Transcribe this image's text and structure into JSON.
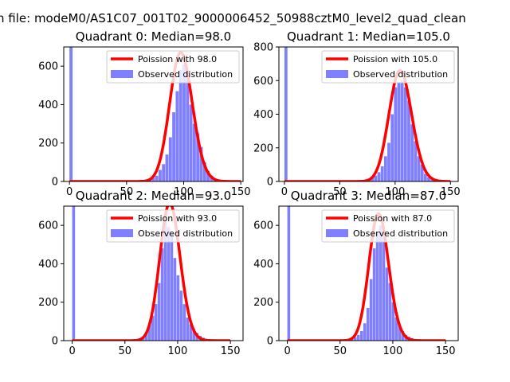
{
  "figure": {
    "suptitle": "n file: modeM0/AS1C07_001T02_9000006452_50988cztM0_level2_quad_clean"
  },
  "colors": {
    "poisson_line": "#ff0000",
    "observed_bars": "#7f7fff",
    "axes": "#000000",
    "background": "#ffffff"
  },
  "chart_data": [
    {
      "type": "bar",
      "title": "Quadrant 0: Median=98.0",
      "xlim": [
        -5,
        152
      ],
      "ylim": [
        0,
        700
      ],
      "xticks": [
        0,
        50,
        100,
        150
      ],
      "yticks": [
        0,
        200,
        400,
        600
      ],
      "legend": {
        "position": "top-right",
        "entries": [
          "Poission with 98.0",
          "Observed distribution"
        ]
      },
      "series": [
        {
          "name": "Poission with 98.0",
          "kind": "line",
          "mean": 98.0
        },
        {
          "name": "Observed distribution",
          "kind": "histogram",
          "bin_width": 3,
          "bins": [
            [
              0,
              700
            ],
            [
              55,
              2
            ],
            [
              60,
              3
            ],
            [
              63,
              5
            ],
            [
              66,
              8
            ],
            [
              69,
              12
            ],
            [
              72,
              20
            ],
            [
              75,
              30
            ],
            [
              78,
              60
            ],
            [
              81,
              90
            ],
            [
              84,
              140
            ],
            [
              87,
              230
            ],
            [
              90,
              360
            ],
            [
              93,
              470
            ],
            [
              96,
              580
            ],
            [
              99,
              610
            ],
            [
              102,
              560
            ],
            [
              105,
              400
            ],
            [
              108,
              300
            ],
            [
              111,
              250
            ],
            [
              114,
              180
            ],
            [
              117,
              100
            ],
            [
              120,
              55
            ],
            [
              123,
              30
            ],
            [
              126,
              15
            ],
            [
              129,
              8
            ],
            [
              132,
              4
            ]
          ]
        }
      ]
    },
    {
      "type": "bar",
      "title": "Quadrant 1: Median=105.0",
      "xlim": [
        -5,
        157
      ],
      "ylim": [
        0,
        800
      ],
      "xticks": [
        0,
        50,
        100,
        150
      ],
      "yticks": [
        0,
        200,
        400,
        600,
        800
      ],
      "legend": {
        "position": "top-right",
        "entries": [
          "Poission with 105.0",
          "Observed distribution"
        ]
      },
      "series": [
        {
          "name": "Poission with 105.0",
          "kind": "line",
          "mean": 105.0
        },
        {
          "name": "Observed distribution",
          "kind": "histogram",
          "bin_width": 3,
          "bins": [
            [
              0,
              800
            ],
            [
              60,
              2
            ],
            [
              66,
              4
            ],
            [
              69,
              6
            ],
            [
              72,
              10
            ],
            [
              75,
              15
            ],
            [
              78,
              20
            ],
            [
              81,
              35
            ],
            [
              84,
              55
            ],
            [
              87,
              90
            ],
            [
              90,
              150
            ],
            [
              93,
              230
            ],
            [
              96,
              400
            ],
            [
              99,
              560
            ],
            [
              102,
              590
            ],
            [
              105,
              600
            ],
            [
              108,
              560
            ],
            [
              111,
              480
            ],
            [
              114,
              340
            ],
            [
              117,
              240
            ],
            [
              120,
              150
            ],
            [
              123,
              100
            ],
            [
              126,
              45
            ],
            [
              129,
              25
            ],
            [
              132,
              12
            ],
            [
              135,
              5
            ],
            [
              138,
              2
            ]
          ]
        }
      ]
    },
    {
      "type": "bar",
      "title": "Quadrant 2: Median=93.0",
      "xlim": [
        -8,
        162
      ],
      "ylim": [
        0,
        700
      ],
      "xticks": [
        0,
        50,
        100,
        150
      ],
      "yticks": [
        0,
        200,
        400,
        600
      ],
      "legend": {
        "position": "top-right",
        "entries": [
          "Poission with 93.0",
          "Observed distribution"
        ]
      },
      "series": [
        {
          "name": "Poission with 93.0",
          "kind": "line",
          "mean": 93.0
        },
        {
          "name": "Observed distribution",
          "kind": "histogram",
          "bin_width": 3,
          "bins": [
            [
              0,
              700
            ],
            [
              54,
              4
            ],
            [
              60,
              8
            ],
            [
              63,
              10
            ],
            [
              66,
              20
            ],
            [
              69,
              45
            ],
            [
              72,
              85
            ],
            [
              75,
              130
            ],
            [
              78,
              190
            ],
            [
              81,
              300
            ],
            [
              84,
              480
            ],
            [
              87,
              650
            ],
            [
              90,
              590
            ],
            [
              93,
              560
            ],
            [
              96,
              430
            ],
            [
              99,
              340
            ],
            [
              102,
              260
            ],
            [
              105,
              190
            ],
            [
              108,
              120
            ],
            [
              111,
              85
            ],
            [
              114,
              60
            ],
            [
              117,
              40
            ],
            [
              120,
              25
            ],
            [
              123,
              15
            ],
            [
              126,
              8
            ]
          ]
        }
      ]
    },
    {
      "type": "bar",
      "title": "Quadrant 3: Median=87.0",
      "xlim": [
        -8,
        162
      ],
      "ylim": [
        0,
        700
      ],
      "xticks": [
        0,
        50,
        100,
        150
      ],
      "yticks": [
        0,
        200,
        400,
        600
      ],
      "legend": {
        "position": "top-right",
        "entries": [
          "Poission with 87.0",
          "Observed distribution"
        ]
      },
      "series": [
        {
          "name": "Poission with 87.0",
          "kind": "line",
          "mean": 87.0
        },
        {
          "name": "Observed distribution",
          "kind": "histogram",
          "bin_width": 3,
          "bins": [
            [
              0,
              700
            ],
            [
              50,
              3
            ],
            [
              54,
              5
            ],
            [
              57,
              8
            ],
            [
              60,
              12
            ],
            [
              63,
              18
            ],
            [
              66,
              30
            ],
            [
              69,
              50
            ],
            [
              72,
              90
            ],
            [
              75,
              170
            ],
            [
              78,
              320
            ],
            [
              81,
              480
            ],
            [
              84,
              560
            ],
            [
              87,
              600
            ],
            [
              90,
              540
            ],
            [
              93,
              380
            ],
            [
              96,
              300
            ],
            [
              99,
              200
            ],
            [
              102,
              120
            ],
            [
              105,
              80
            ],
            [
              108,
              50
            ],
            [
              111,
              30
            ],
            [
              114,
              20
            ],
            [
              117,
              12
            ],
            [
              120,
              8
            ],
            [
              123,
              4
            ]
          ]
        }
      ]
    }
  ]
}
